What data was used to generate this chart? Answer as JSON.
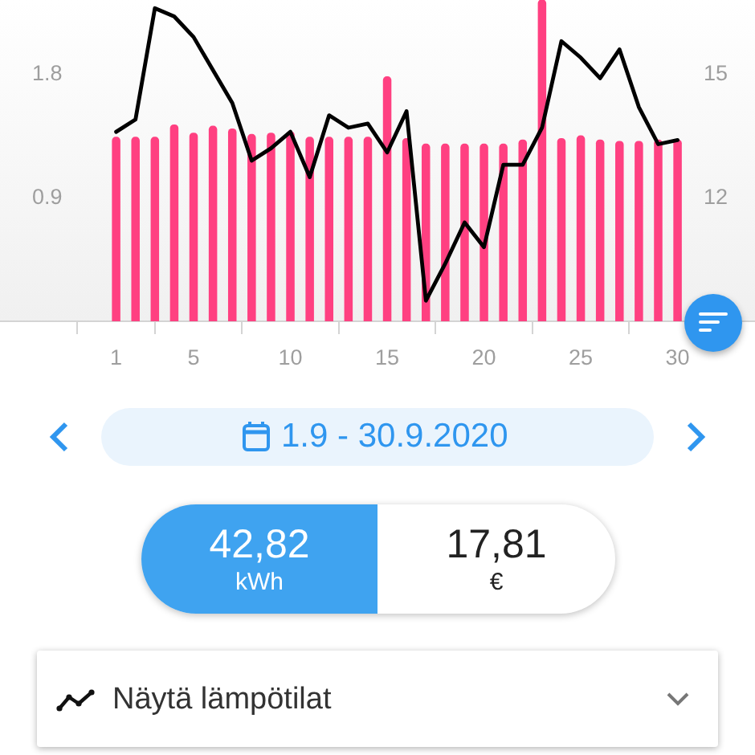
{
  "chart_data": {
    "type": "bar",
    "x": [
      1,
      2,
      3,
      4,
      5,
      6,
      7,
      8,
      9,
      10,
      11,
      12,
      13,
      14,
      15,
      16,
      17,
      18,
      19,
      20,
      21,
      22,
      23,
      24,
      25,
      26,
      27,
      28,
      29,
      30
    ],
    "series": [
      {
        "color": "#ff4081",
        "values": [
          1.34,
          1.34,
          1.34,
          1.43,
          1.37,
          1.42,
          1.4,
          1.36,
          1.37,
          1.38,
          1.34,
          1.34,
          1.34,
          1.34,
          1.78,
          1.33,
          1.29,
          1.29,
          1.29,
          1.29,
          1.29,
          1.32,
          2.34,
          1.33,
          1.35,
          1.32,
          1.31,
          1.31,
          1.32,
          1.32
        ]
      },
      {
        "type": "line",
        "axis": "y2",
        "color": "#000000",
        "values": [
          13.6,
          13.9,
          16.6,
          16.4,
          15.9,
          15.1,
          14.3,
          12.9,
          13.2,
          13.6,
          12.5,
          14.0,
          13.7,
          13.8,
          13.1,
          14.1,
          9.5,
          10.4,
          11.4,
          10.8,
          12.8,
          12.8,
          13.7,
          15.8,
          15.4,
          14.9,
          15.6,
          14.2,
          13.3,
          13.4
        ]
      }
    ],
    "xlim": [
      -5,
      34
    ],
    "xticks": [
      1,
      5,
      10,
      15,
      20,
      25,
      30
    ],
    "ylim": [
      0,
      2.34
    ],
    "yticks": [
      0.9,
      1.8
    ],
    "y2lim": [
      9,
      16.8
    ],
    "y2ticks": [
      12,
      15
    ],
    "marker": "none",
    "line_style": "solid",
    "annotations": [
      "1.9 - 30.9.2020",
      "42,82",
      "kWh",
      "17,81",
      "€",
      "Näytä lämpötilat"
    ]
  }
}
